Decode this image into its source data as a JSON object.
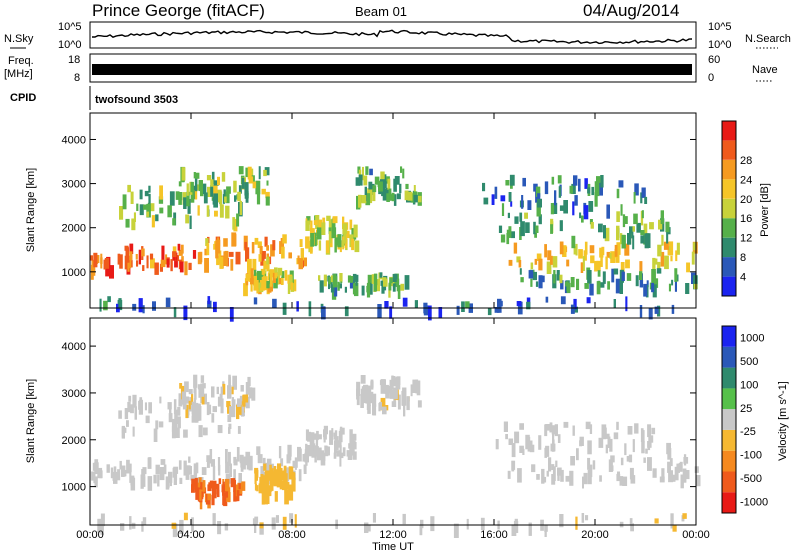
{
  "header": {
    "station": "Prince George (fitACF)",
    "beam": "Beam 01",
    "date": "04/Aug/2014"
  },
  "labels": {
    "nsky": "N.Sky",
    "nsearch": "N.Search",
    "freq": "Freq.",
    "freq_unit": "[MHz]",
    "nave": "Nave",
    "cpid": "CPID",
    "cpid_value": "twofsound 3503",
    "ylabel": "Slant Range [km]",
    "xlabel": "Time UT"
  },
  "noise_axis": {
    "left_ticks": [
      "10^5",
      "10^0"
    ],
    "right_ticks": [
      "10^5",
      "10^0"
    ]
  },
  "freq_axis": {
    "left_ticks": [
      "18",
      "8"
    ],
    "right_ticks": [
      "60",
      "0"
    ]
  },
  "chart_data": [
    {
      "type": "heatmap",
      "title": "",
      "xlabel": "Time UT",
      "ylabel": "Slant Range [km]",
      "x_ticks": [
        "00:00",
        "04:00",
        "08:00",
        "12:00",
        "16:00",
        "20:00",
        "00:00"
      ],
      "xlim": [
        0,
        24
      ],
      "y_ticks": [
        1000,
        2000,
        3000,
        4000
      ],
      "ylim": [
        180,
        4600
      ],
      "colorbar": {
        "label": "Power [dB]",
        "ticks": [
          "4",
          "8",
          "12",
          "16",
          "20",
          "24",
          "28"
        ],
        "colors": [
          "#1b24f0",
          "#2a58b8",
          "#2f8a6d",
          "#56b04a",
          "#c8d23a",
          "#f5c528",
          "#f59a20",
          "#ef5a1c",
          "#e81a16"
        ],
        "range": [
          0,
          32
        ]
      },
      "bands": [
        {
          "t": [
            0,
            4.5
          ],
          "r": [
            1150,
            1650
          ],
          "level": 26
        },
        {
          "t": [
            4.5,
            8.5
          ],
          "r": [
            1250,
            1900
          ],
          "level": 22
        },
        {
          "t": [
            8.5,
            10.5
          ],
          "r": [
            1700,
            2300
          ],
          "level": 16
        },
        {
          "t": [
            10.5,
            13
          ],
          "r": [
            2700,
            3400
          ],
          "level": 12
        },
        {
          "t": [
            1,
            6
          ],
          "r": [
            2200,
            3000
          ],
          "level": 14
        },
        {
          "t": [
            3.5,
            7
          ],
          "r": [
            2700,
            3400
          ],
          "level": 14
        },
        {
          "t": [
            6,
            8
          ],
          "r": [
            700,
            1100
          ],
          "level": 18
        },
        {
          "t": [
            9,
            12.5
          ],
          "r": [
            650,
            1000
          ],
          "level": 12
        },
        {
          "t": [
            16.5,
            24
          ],
          "r": [
            1200,
            1700
          ],
          "level": 20
        },
        {
          "t": [
            16,
            23
          ],
          "r": [
            1800,
            2400
          ],
          "level": 12
        },
        {
          "t": [
            15.5,
            22
          ],
          "r": [
            2500,
            3200
          ],
          "level": 8
        },
        {
          "t": [
            17,
            24
          ],
          "r": [
            700,
            1100
          ],
          "level": 10
        },
        {
          "t": [
            0,
            24
          ],
          "r": [
            180,
            450
          ],
          "level": 6
        }
      ]
    },
    {
      "type": "heatmap",
      "title": "",
      "xlabel": "Time UT",
      "ylabel": "Slant Range [km]",
      "x_ticks": [
        "00:00",
        "04:00",
        "08:00",
        "12:00",
        "16:00",
        "20:00",
        "00:00"
      ],
      "xlim": [
        0,
        24
      ],
      "y_ticks": [
        1000,
        2000,
        3000,
        4000
      ],
      "ylim": [
        180,
        4600
      ],
      "colorbar": {
        "label": "Velocity [m s^-1]",
        "ticks": [
          "1000",
          "500",
          "100",
          "25",
          "-25",
          "-100",
          "-500",
          "-1000"
        ],
        "colors": [
          "#e81a16",
          "#ef5a1c",
          "#f5891f",
          "#f5b832",
          "#c8c8c8",
          "#56c04a",
          "#2f8a6d",
          "#2a58b8",
          "#1b24f0"
        ],
        "range": [
          -1200,
          1200
        ]
      },
      "bands": [
        {
          "t": [
            0,
            4.5
          ],
          "r": [
            1150,
            1650
          ],
          "level": 0
        },
        {
          "t": [
            4.5,
            8.5
          ],
          "r": [
            1250,
            1900
          ],
          "level": 0
        },
        {
          "t": [
            8.5,
            10.5
          ],
          "r": [
            1700,
            2300
          ],
          "level": 0
        },
        {
          "t": [
            1,
            6
          ],
          "r": [
            2200,
            3000
          ],
          "level": 0
        },
        {
          "t": [
            6.5,
            8
          ],
          "r": [
            900,
            1500
          ],
          "level": -300
        },
        {
          "t": [
            4,
            6
          ],
          "r": [
            800,
            1200
          ],
          "level": -700
        },
        {
          "t": [
            3.5,
            6.5
          ],
          "r": [
            2700,
            3400
          ],
          "level": -100
        },
        {
          "t": [
            10.5,
            13
          ],
          "r": [
            2700,
            3400
          ],
          "level": -60
        },
        {
          "t": [
            16.5,
            24
          ],
          "r": [
            1200,
            1700
          ],
          "level": 0
        },
        {
          "t": [
            16,
            23
          ],
          "r": [
            1800,
            2400
          ],
          "level": 0
        },
        {
          "t": [
            0,
            24
          ],
          "r": [
            180,
            450
          ],
          "level": -60
        }
      ]
    }
  ]
}
